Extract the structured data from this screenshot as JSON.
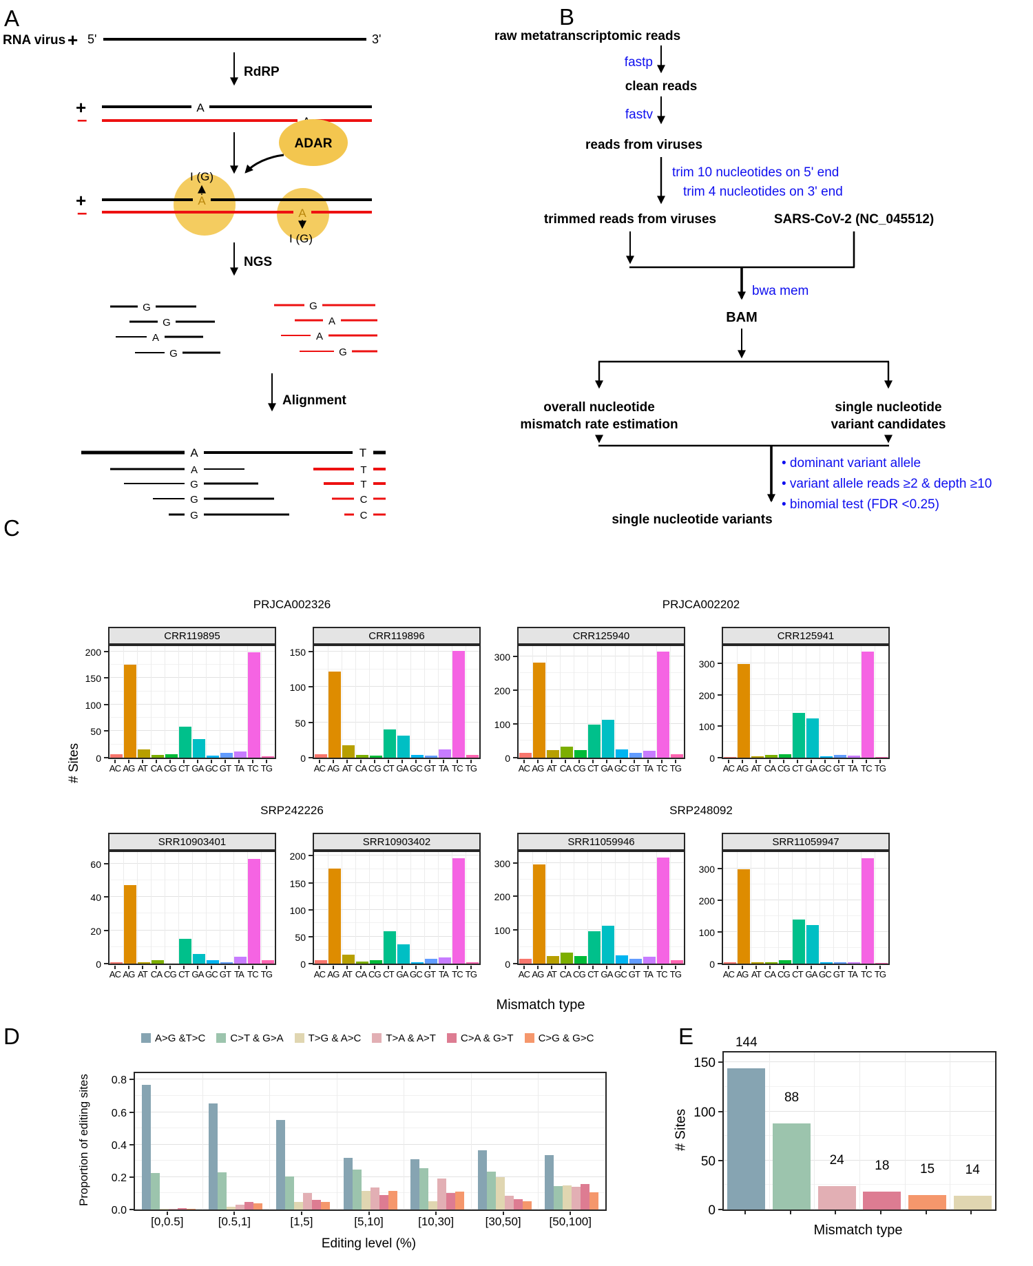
{
  "panels": {
    "a": {
      "label": "A",
      "rna_virus": "RNA  virus",
      "plus": "+",
      "minus": "–",
      "five_prime": "5'",
      "three_prime": "3'",
      "rdrp": "RdRP",
      "adar": "ADAR",
      "ngs": "NGS",
      "alignment": "Alignment",
      "inosine": "I (G)",
      "base_a": "A",
      "plus_strand_reads": [
        "G",
        "G",
        "A",
        "G"
      ],
      "minus_strand_reads": [
        "G",
        "A",
        "A",
        "G"
      ],
      "ref_bases": [
        "A",
        "T"
      ],
      "aligned_plus_reads": [
        "A",
        "G",
        "G",
        "G"
      ],
      "aligned_minus_reads": [
        "T",
        "T",
        "C",
        "C"
      ],
      "colors": {
        "plus_strand": "#000000",
        "minus_strand": "#ED1111",
        "adar_fill": "#F3C64F",
        "edited_base": "#B8860B"
      }
    },
    "b": {
      "label": "B",
      "accent_blue": "#0F0FEF",
      "nodes": {
        "raw": "raw metatranscriptomic reads",
        "fastp": "fastp",
        "clean": "clean reads",
        "fastv": "fastv",
        "reads_viruses": "reads from viruses",
        "trim5": "trim 10 nucleotides on 5' end",
        "trim3": "trim 4 nucleotides on 3' end",
        "trimmed": "trimmed reads from viruses",
        "reference": "SARS-CoV-2  (NC_045512)",
        "bwa": "bwa mem",
        "bam": "BAM",
        "overall1": "overall  nucleotide",
        "overall2": "mismatch rate estimation",
        "snv1": "single nucleotide",
        "snv2": "variant  candidates",
        "filter1": "• dominant  variant  allele",
        "filter2": "• variant allele reads ≥2 & depth ≥10",
        "filter3": "• binomial test   (FDR <0.25)",
        "final": "single nucleotide variants"
      }
    },
    "c": {
      "label": "C"
    },
    "d": {
      "label": "D"
    },
    "e": {
      "label": "E"
    }
  },
  "chart_data": [
    {
      "id": "panel_c_mismatch_grid",
      "type": "bar",
      "ylabel": "# Sites",
      "xlabel": "Mismatch type",
      "categories": [
        "AC",
        "AG",
        "AT",
        "CA",
        "CG",
        "CT",
        "GA",
        "GC",
        "GT",
        "TA",
        "TC",
        "TG"
      ],
      "colors": [
        "#F8766D",
        "#DE8C00",
        "#B79F00",
        "#7CAE00",
        "#00BA38",
        "#00C08B",
        "#00BFC4",
        "#00B4F0",
        "#619CFF",
        "#C77CFF",
        "#F564E3",
        "#FF64B0"
      ],
      "groups": [
        {
          "title": "PRJCA002326",
          "subplots": [
            {
              "title": "CRR119895",
              "yticks": [
                0,
                50,
                100,
                150,
                200
              ],
              "ymax": 210,
              "values": [
                7,
                175,
                15,
                5,
                7,
                59,
                35,
                4,
                9,
                12,
                198,
                3
              ]
            },
            {
              "title": "CRR119896",
              "yticks": [
                0,
                50,
                100,
                150
              ],
              "ymax": 158,
              "values": [
                5,
                122,
                18,
                4,
                3,
                40,
                31,
                4,
                3,
                12,
                151,
                4
              ]
            }
          ]
        },
        {
          "title": "PRJCA002202",
          "subplots": [
            {
              "title": "CRR125940",
              "yticks": [
                0,
                100,
                200,
                300
              ],
              "ymax": 330,
              "values": [
                15,
                281,
                22,
                33,
                22,
                97,
                113,
                25,
                15,
                20,
                313,
                10
              ]
            },
            {
              "title": "CRR125941",
              "yticks": [
                0,
                100,
                200,
                300
              ],
              "ymax": 355,
              "values": [
                3,
                297,
                5,
                8,
                12,
                142,
                124,
                4,
                8,
                7,
                337,
                2
              ]
            }
          ]
        },
        {
          "title": "SRP242226",
          "subplots": [
            {
              "title": "SRR10903401",
              "yticks": [
                0,
                20,
                40,
                60
              ],
              "ymax": 67,
              "values": [
                1,
                47,
                1,
                2,
                0,
                15,
                6,
                2,
                1,
                4,
                63,
                2
              ]
            },
            {
              "title": "SRR10903402",
              "yticks": [
                0,
                50,
                100,
                150,
                200
              ],
              "ymax": 207,
              "values": [
                7,
                176,
                16,
                4,
                7,
                60,
                36,
                3,
                9,
                11,
                196,
                3
              ]
            }
          ]
        },
        {
          "title": "SRP248092",
          "subplots": [
            {
              "title": "SRR11059946",
              "yticks": [
                0,
                100,
                200,
                300
              ],
              "ymax": 332,
              "values": [
                15,
                295,
                22,
                33,
                22,
                97,
                113,
                25,
                15,
                20,
                315,
                10
              ]
            },
            {
              "title": "SRR11059947",
              "yticks": [
                0,
                100,
                200,
                300
              ],
              "ymax": 352,
              "values": [
                5,
                297,
                5,
                5,
                10,
                140,
                122,
                5,
                5,
                5,
                333,
                2
              ]
            }
          ]
        }
      ]
    },
    {
      "id": "panel_d_editing_levels",
      "type": "grouped_bar",
      "ylabel": "Proportion of editing sites",
      "xlabel": "Editing level (%)",
      "categories": [
        "[0,0.5]",
        "[0.5,1]",
        "[1,5]",
        "[5,10]",
        "[10,30]",
        "[30,50]",
        "[50,100]"
      ],
      "yticks": [
        0,
        0.2,
        0.4,
        0.6,
        0.8
      ],
      "ytick_labels": [
        "0.0",
        "0.2",
        "0.4",
        "0.6",
        "0.8"
      ],
      "ymax": 0.84,
      "legend_position": "top",
      "series": [
        {
          "name": "A>G &T>C",
          "color": "#86A4B2",
          "values": [
            0.77,
            0.655,
            0.55,
            0.32,
            0.31,
            0.365,
            0.335
          ]
        },
        {
          "name": "C>T & G>A",
          "color": "#9CC4AD",
          "values": [
            0.225,
            0.23,
            0.205,
            0.245,
            0.255,
            0.235,
            0.145
          ]
        },
        {
          "name": "T>G & A>C",
          "color": "#E0D6B1",
          "values": [
            0.005,
            0.015,
            0.045,
            0.115,
            0.05,
            0.2,
            0.15
          ]
        },
        {
          "name": "T>A & A>T",
          "color": "#E2AFB4",
          "values": [
            0.003,
            0.03,
            0.1,
            0.135,
            0.19,
            0.085,
            0.14
          ]
        },
        {
          "name": "C>A & G>T",
          "color": "#DD7C92",
          "values": [
            0.008,
            0.045,
            0.06,
            0.09,
            0.1,
            0.065,
            0.155
          ]
        },
        {
          "name": "C>G & G>C",
          "color": "#F5976C",
          "values": [
            0.005,
            0.038,
            0.047,
            0.115,
            0.11,
            0.05,
            0.105
          ]
        }
      ]
    },
    {
      "id": "panel_e_site_counts",
      "type": "bar",
      "ylabel": "# Sites",
      "xlabel": "Mismatch type",
      "yticks": [
        0,
        50,
        100,
        150
      ],
      "ymax": 160,
      "colors": [
        "#86A4B2",
        "#9CC4AD",
        "#E2AFB4",
        "#DD7C92",
        "#F5976C",
        "#E0D6B1"
      ],
      "values": [
        144,
        88,
        24,
        18,
        15,
        14
      ],
      "value_labels": [
        "144",
        "88",
        "24",
        "18",
        "15",
        "14"
      ]
    }
  ]
}
